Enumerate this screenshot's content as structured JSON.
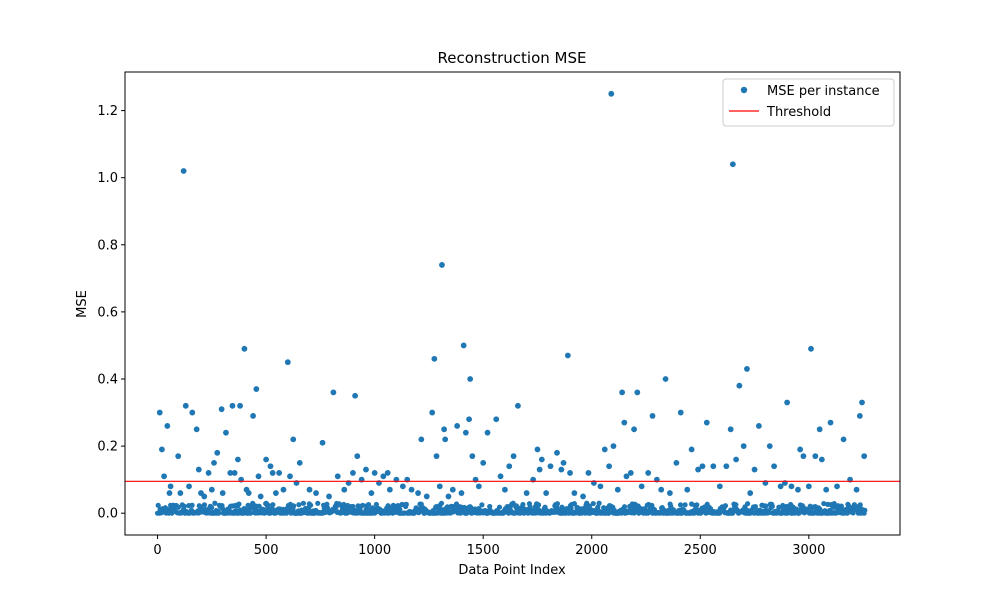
{
  "chart_data": {
    "type": "scatter",
    "title": "Reconstruction MSE",
    "xlabel": "Data Point Index",
    "ylabel": "MSE",
    "xlim": [
      -150,
      3420
    ],
    "ylim": [
      -0.065,
      1.315
    ],
    "xticks": [
      0,
      500,
      1000,
      1500,
      2000,
      2500,
      3000
    ],
    "yticks": [
      0.0,
      0.2,
      0.4,
      0.6,
      0.8,
      1.0,
      1.2
    ],
    "grid": false,
    "legend": "top-right",
    "threshold": 0.095,
    "n_points": 3260,
    "series": [
      {
        "name": "MSE per instance",
        "kind": "scatter",
        "color": "#1f77b4",
        "points": [
          [
            10,
            0.3
          ],
          [
            20,
            0.19
          ],
          [
            30,
            0.11
          ],
          [
            45,
            0.26
          ],
          [
            55,
            0.06
          ],
          [
            60,
            0.08
          ],
          [
            95,
            0.17
          ],
          [
            105,
            0.06
          ],
          [
            120,
            1.02
          ],
          [
            130,
            0.32
          ],
          [
            145,
            0.08
          ],
          [
            160,
            0.3
          ],
          [
            180,
            0.25
          ],
          [
            190,
            0.13
          ],
          [
            200,
            0.06
          ],
          [
            215,
            0.05
          ],
          [
            235,
            0.12
          ],
          [
            250,
            0.07
          ],
          [
            260,
            0.15
          ],
          [
            275,
            0.18
          ],
          [
            295,
            0.31
          ],
          [
            300,
            0.06
          ],
          [
            315,
            0.24
          ],
          [
            335,
            0.12
          ],
          [
            345,
            0.32
          ],
          [
            355,
            0.12
          ],
          [
            370,
            0.16
          ],
          [
            380,
            0.32
          ],
          [
            385,
            0.1
          ],
          [
            400,
            0.49
          ],
          [
            410,
            0.07
          ],
          [
            420,
            0.06
          ],
          [
            440,
            0.29
          ],
          [
            455,
            0.37
          ],
          [
            465,
            0.11
          ],
          [
            475,
            0.05
          ],
          [
            500,
            0.16
          ],
          [
            520,
            0.14
          ],
          [
            530,
            0.12
          ],
          [
            545,
            0.06
          ],
          [
            560,
            0.12
          ],
          [
            580,
            0.07
          ],
          [
            600,
            0.45
          ],
          [
            610,
            0.11
          ],
          [
            625,
            0.22
          ],
          [
            640,
            0.09
          ],
          [
            655,
            0.15
          ],
          [
            700,
            0.07
          ],
          [
            730,
            0.06
          ],
          [
            760,
            0.21
          ],
          [
            790,
            0.05
          ],
          [
            810,
            0.36
          ],
          [
            830,
            0.11
          ],
          [
            860,
            0.07
          ],
          [
            880,
            0.09
          ],
          [
            900,
            0.12
          ],
          [
            910,
            0.35
          ],
          [
            920,
            0.17
          ],
          [
            940,
            0.1
          ],
          [
            960,
            0.13
          ],
          [
            985,
            0.06
          ],
          [
            1000,
            0.12
          ],
          [
            1020,
            0.09
          ],
          [
            1040,
            0.11
          ],
          [
            1060,
            0.12
          ],
          [
            1070,
            0.07
          ],
          [
            1100,
            0.1
          ],
          [
            1130,
            0.08
          ],
          [
            1150,
            0.1
          ],
          [
            1170,
            0.07
          ],
          [
            1200,
            0.06
          ],
          [
            1215,
            0.22
          ],
          [
            1240,
            0.05
          ],
          [
            1265,
            0.3
          ],
          [
            1275,
            0.46
          ],
          [
            1285,
            0.17
          ],
          [
            1300,
            0.08
          ],
          [
            1310,
            0.74
          ],
          [
            1320,
            0.25
          ],
          [
            1325,
            0.22
          ],
          [
            1340,
            0.05
          ],
          [
            1360,
            0.07
          ],
          [
            1380,
            0.26
          ],
          [
            1400,
            0.06
          ],
          [
            1410,
            0.5
          ],
          [
            1420,
            0.24
          ],
          [
            1435,
            0.28
          ],
          [
            1440,
            0.4
          ],
          [
            1450,
            0.17
          ],
          [
            1465,
            0.1
          ],
          [
            1480,
            0.08
          ],
          [
            1500,
            0.15
          ],
          [
            1520,
            0.24
          ],
          [
            1560,
            0.28
          ],
          [
            1580,
            0.11
          ],
          [
            1600,
            0.07
          ],
          [
            1620,
            0.14
          ],
          [
            1640,
            0.17
          ],
          [
            1660,
            0.32
          ],
          [
            1700,
            0.06
          ],
          [
            1730,
            0.1
          ],
          [
            1750,
            0.19
          ],
          [
            1760,
            0.13
          ],
          [
            1770,
            0.16
          ],
          [
            1790,
            0.06
          ],
          [
            1810,
            0.14
          ],
          [
            1840,
            0.18
          ],
          [
            1860,
            0.13
          ],
          [
            1870,
            0.15
          ],
          [
            1890,
            0.47
          ],
          [
            1900,
            0.12
          ],
          [
            1920,
            0.06
          ],
          [
            1960,
            0.05
          ],
          [
            1985,
            0.12
          ],
          [
            2010,
            0.09
          ],
          [
            2040,
            0.08
          ],
          [
            2060,
            0.19
          ],
          [
            2080,
            0.14
          ],
          [
            2090,
            1.25
          ],
          [
            2100,
            0.2
          ],
          [
            2120,
            0.07
          ],
          [
            2140,
            0.36
          ],
          [
            2150,
            0.27
          ],
          [
            2160,
            0.11
          ],
          [
            2180,
            0.12
          ],
          [
            2195,
            0.25
          ],
          [
            2210,
            0.36
          ],
          [
            2230,
            0.08
          ],
          [
            2260,
            0.12
          ],
          [
            2280,
            0.29
          ],
          [
            2300,
            0.1
          ],
          [
            2320,
            0.07
          ],
          [
            2340,
            0.4
          ],
          [
            2360,
            0.06
          ],
          [
            2390,
            0.15
          ],
          [
            2410,
            0.3
          ],
          [
            2440,
            0.07
          ],
          [
            2460,
            0.19
          ],
          [
            2490,
            0.13
          ],
          [
            2510,
            0.14
          ],
          [
            2530,
            0.27
          ],
          [
            2560,
            0.14
          ],
          [
            2590,
            0.08
          ],
          [
            2620,
            0.14
          ],
          [
            2640,
            0.25
          ],
          [
            2650,
            1.04
          ],
          [
            2665,
            0.16
          ],
          [
            2680,
            0.38
          ],
          [
            2700,
            0.2
          ],
          [
            2715,
            0.43
          ],
          [
            2730,
            0.06
          ],
          [
            2750,
            0.13
          ],
          [
            2770,
            0.26
          ],
          [
            2800,
            0.09
          ],
          [
            2820,
            0.2
          ],
          [
            2840,
            0.14
          ],
          [
            2870,
            0.08
          ],
          [
            2890,
            0.09
          ],
          [
            2900,
            0.33
          ],
          [
            2920,
            0.08
          ],
          [
            2950,
            0.07
          ],
          [
            2960,
            0.19
          ],
          [
            2975,
            0.17
          ],
          [
            3000,
            0.08
          ],
          [
            3010,
            0.49
          ],
          [
            3030,
            0.17
          ],
          [
            3050,
            0.25
          ],
          [
            3060,
            0.16
          ],
          [
            3080,
            0.07
          ],
          [
            3100,
            0.27
          ],
          [
            3130,
            0.08
          ],
          [
            3160,
            0.22
          ],
          [
            3190,
            0.1
          ],
          [
            3220,
            0.07
          ],
          [
            3235,
            0.29
          ],
          [
            3245,
            0.33
          ],
          [
            3255,
            0.17
          ]
        ],
        "baseline_band": {
          "y_min": 0.0,
          "y_max": 0.03,
          "note": "dense cluster of remaining points near zero across all indices"
        }
      },
      {
        "name": "Threshold",
        "kind": "hline",
        "color": "#ff0000",
        "y": 0.095
      }
    ]
  }
}
